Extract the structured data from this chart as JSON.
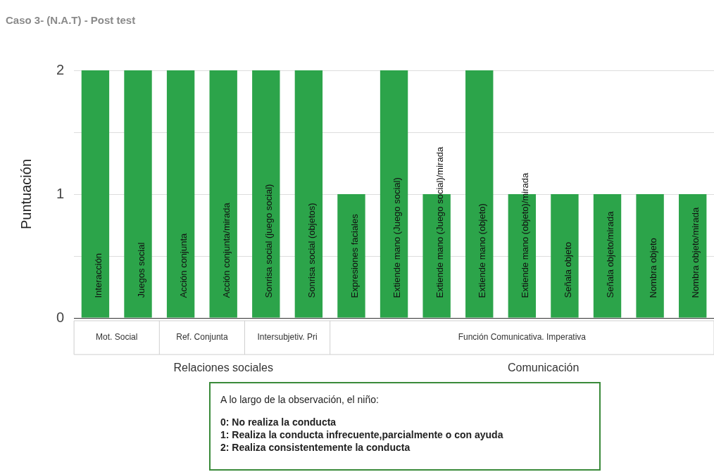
{
  "chart_data": {
    "type": "bar",
    "title": "Caso 3- (N.A.T) - Post test",
    "ylabel": "Puntuación",
    "categories": [
      "Interacción",
      "Juegos social",
      "Acción conjunta",
      "Acción conjunta/mirada",
      "Sonrisa social (juego social)",
      "Sonrisa social (objetos)",
      "Expresiones faciales",
      "Extiende mano (Juego social)",
      "Extiende mano (Juego social)/mirada",
      "Extiende mano (objeto)",
      "Extiende mano (objeto)/mirada",
      "Señala objeto",
      "Señala objeto/mirada",
      "Nombra objeto",
      "Nombra objeto/mirada"
    ],
    "values": [
      2,
      2,
      2,
      2,
      2,
      2,
      1,
      2,
      1,
      2,
      1,
      1,
      1,
      1,
      1
    ],
    "color": "#2ca44a",
    "ylim": [
      0,
      2
    ],
    "yticks": [
      0,
      {
        "value": 0.5,
        "label": null
      },
      1,
      {
        "value": 1.5,
        "label": null
      },
      2
    ],
    "grid": "y",
    "annotations": [
      "Mot. Social",
      "Ref. Conjunta",
      "Intersubjetiv. Pri",
      "Función Comunicativa. Imperativa",
      "Relaciones sociales",
      "Comunicación",
      "A lo largo de la observación, el niño:",
      "0: No realiza la conducta",
      "1: Realiza la conducta infrecuente,parcialmente o con ayuda",
      "2: Realiza consistentemente la conducta"
    ]
  }
}
